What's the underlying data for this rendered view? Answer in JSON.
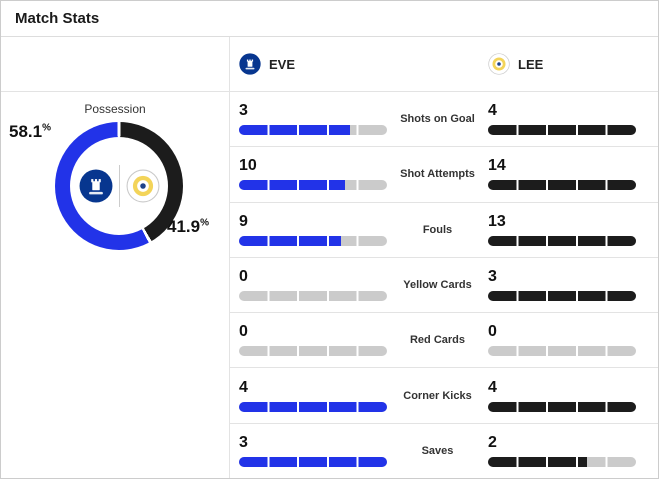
{
  "title": "Match Stats",
  "header": {
    "home": {
      "code": "EVE",
      "badge": "everton-crest"
    },
    "away": {
      "code": "LEE",
      "badge": "leeds-crest"
    }
  },
  "possession": {
    "label": "Possession",
    "home_pct": 58.1,
    "away_pct": 41.9,
    "pct_symbol": "%"
  },
  "colors": {
    "home_bar": "#2233e8",
    "away_bar": "#1c1c1c",
    "bar_empty": "#cbcbcb"
  },
  "stats": {
    "rows": [
      {
        "label": "Shots on Goal",
        "home": 3,
        "away": 4
      },
      {
        "label": "Shot Attempts",
        "home": 10,
        "away": 14
      },
      {
        "label": "Fouls",
        "home": 9,
        "away": 13
      },
      {
        "label": "Yellow Cards",
        "home": 0,
        "away": 3
      },
      {
        "label": "Red Cards",
        "home": 0,
        "away": 0
      },
      {
        "label": "Corner Kicks",
        "home": 4,
        "away": 4
      },
      {
        "label": "Saves",
        "home": 3,
        "away": 2
      }
    ]
  },
  "chart_data": [
    {
      "type": "pie",
      "title": "Possession",
      "labels": [
        "EVE",
        "LEE"
      ],
      "values": [
        58.1,
        41.9
      ],
      "colors": [
        "#2233e8",
        "#1c1c1c"
      ],
      "style": "donut"
    },
    {
      "type": "bar",
      "title": "Match Stats",
      "categories": [
        "Shots on Goal",
        "Shot Attempts",
        "Fouls",
        "Yellow Cards",
        "Red Cards",
        "Corner Kicks",
        "Saves"
      ],
      "series": [
        {
          "name": "EVE",
          "values": [
            3,
            10,
            9,
            0,
            0,
            4,
            3
          ]
        },
        {
          "name": "LEE",
          "values": [
            4,
            14,
            13,
            3,
            0,
            4,
            2
          ]
        }
      ],
      "note": "each bar filled proportionally to row max, 5 segments"
    }
  ]
}
